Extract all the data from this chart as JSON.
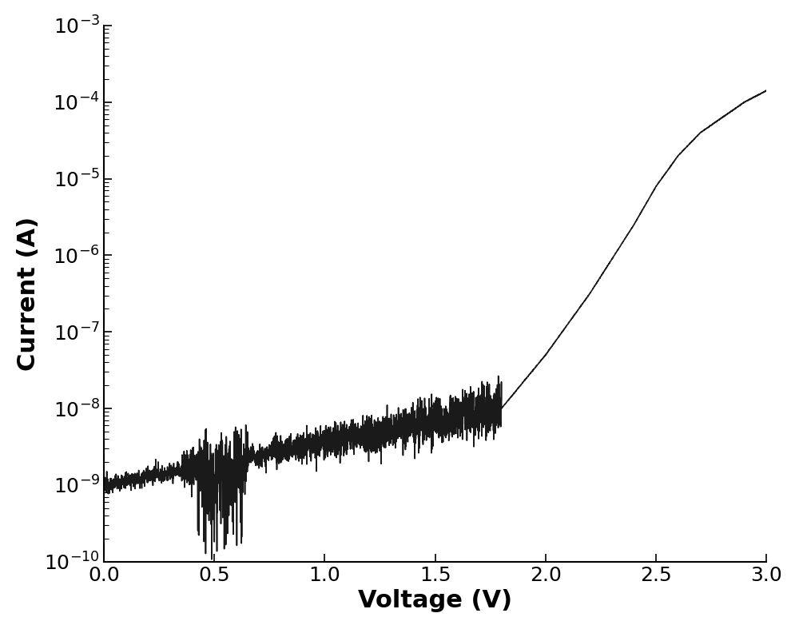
{
  "xlabel": "Voltage (V)",
  "ylabel": "Current (A)",
  "xlim": [
    0.0,
    3.0
  ],
  "ylim": [
    1e-10,
    0.001
  ],
  "xlabel_fontsize": 22,
  "ylabel_fontsize": 22,
  "tick_fontsize": 18,
  "line_color": "#1a1a1a",
  "line_width": 1.2,
  "background_color": "#ffffff",
  "xticks": [
    0.0,
    0.5,
    1.0,
    1.5,
    2.0,
    2.5,
    3.0
  ],
  "curve_keypoints_v": [
    0.0,
    1.8,
    2.0,
    2.2,
    2.4,
    2.5,
    2.6,
    2.7,
    2.8,
    2.9,
    3.0
  ],
  "curve_keypoints_logI": [
    -9.0,
    -8.0,
    -7.3,
    -6.5,
    -5.6,
    -5.1,
    -4.7,
    -4.4,
    -4.2,
    -4.0,
    -3.85
  ]
}
